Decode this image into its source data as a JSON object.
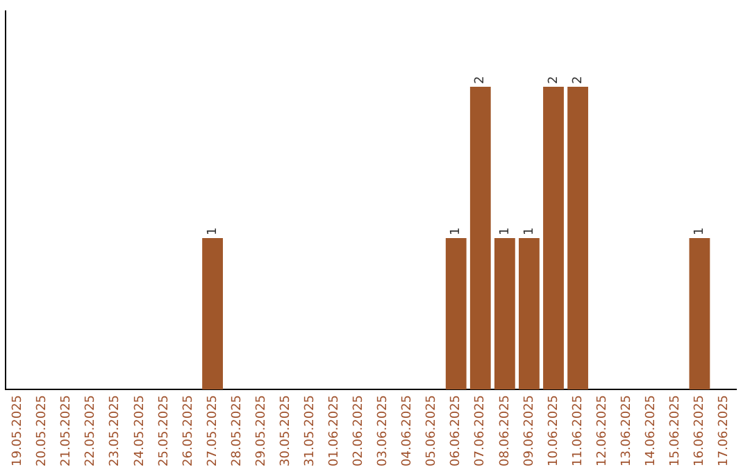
{
  "chart_data": {
    "type": "bar",
    "categories": [
      "19.05.2025",
      "20.05.2025",
      "21.05.2025",
      "22.05.2025",
      "23.05.2025",
      "24.05.2025",
      "25.05.2025",
      "26.05.2025",
      "27.05.2025",
      "28.05.2025",
      "29.05.2025",
      "30.05.2025",
      "31.05.2025",
      "01.06.2025",
      "02.06.2025",
      "03.06.2025",
      "04.06.2025",
      "05.06.2025",
      "06.06.2025",
      "07.06.2025",
      "08.06.2025",
      "09.06.2025",
      "10.06.2025",
      "11.06.2025",
      "12.06.2025",
      "13.06.2025",
      "14.06.2025",
      "15.06.2025",
      "16.06.2025",
      "17.06.2025"
    ],
    "values": [
      0,
      0,
      0,
      0,
      0,
      0,
      0,
      0,
      1,
      0,
      0,
      0,
      0,
      0,
      0,
      0,
      0,
      0,
      1,
      2,
      1,
      1,
      2,
      2,
      0,
      0,
      0,
      0,
      1,
      0
    ],
    "value_labels": [
      null,
      null,
      null,
      null,
      null,
      null,
      null,
      null,
      "1",
      null,
      null,
      null,
      null,
      null,
      null,
      null,
      null,
      null,
      "1",
      "2",
      "1",
      "1",
      "2",
      "2",
      null,
      null,
      null,
      null,
      "1",
      null
    ],
    "color": "#a0572a",
    "tick_labels": "x",
    "grid": false,
    "legend": false
  }
}
